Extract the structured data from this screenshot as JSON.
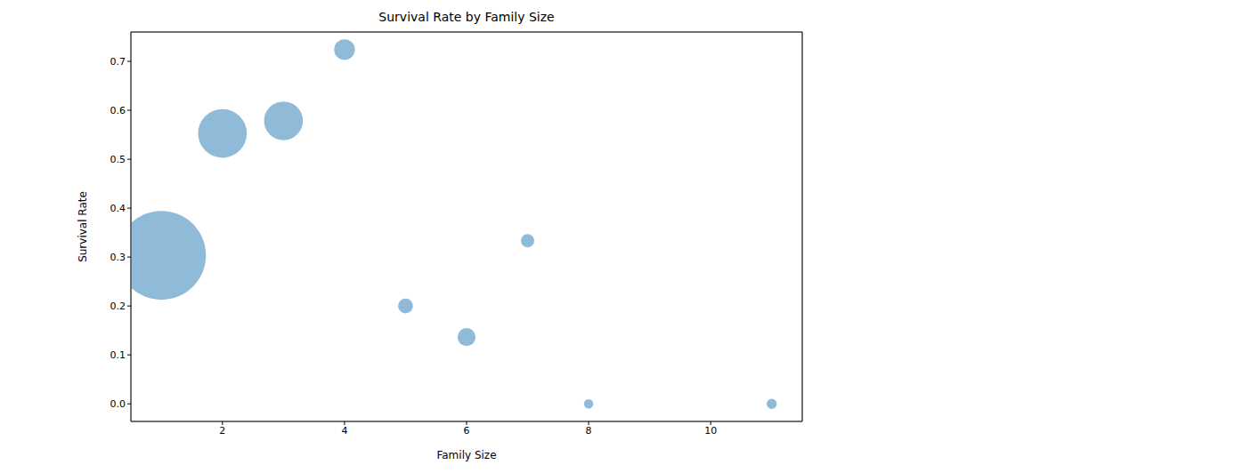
{
  "chart_data": {
    "type": "scatter",
    "title": "Survival Rate by Family Size",
    "x_label": "Family Size",
    "y_label": "Survival Rate",
    "x": [
      1,
      2,
      3,
      4,
      5,
      6,
      7,
      8,
      11
    ],
    "values": [
      0.3035,
      0.5528,
      0.5784,
      0.7241,
      0.2,
      0.1364,
      0.3333,
      0,
      0
    ],
    "sizes": [
      537,
      161,
      102,
      29,
      15,
      22,
      12,
      6,
      7
    ],
    "color": "#1f77b4",
    "xlim": [
      0.5,
      11.5
    ],
    "xticks": [
      2,
      4,
      6,
      8,
      10
    ],
    "ylim": [
      -0.036,
      0.76
    ],
    "yticks": [
      {
        "value": 0,
        "label": "0.0"
      },
      0.1,
      0.2,
      0.3,
      0.4,
      0.5,
      0.6,
      0.7
    ],
    "grid": true
  }
}
